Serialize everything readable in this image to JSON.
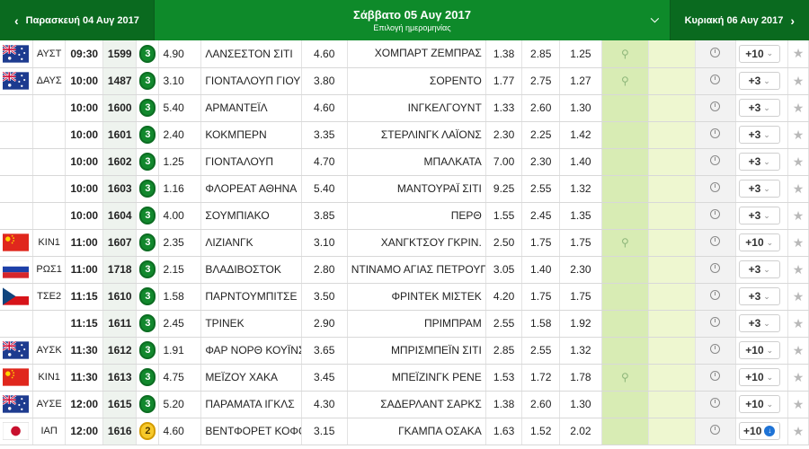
{
  "nav": {
    "prev_label": "Παρασκευή 04 Αυγ 2017",
    "prev_arrow": "‹",
    "current_label": "Σάββατο 05 Αυγ 2017",
    "current_sub": "Επιλογή ημερομηνίας",
    "current_chevron": "»",
    "next_label": "Κυριακή 06 Αυγ 2017",
    "next_arrow": "›"
  },
  "colors": {
    "header_green": "#0c7a24",
    "badge_green": "#12882d",
    "badge_yellow": "#f7c92b",
    "cell_light_green": "#d8ecb4",
    "cell_pale_green": "#eef7d0"
  },
  "rows": [
    {
      "flag": "au",
      "code": "ΑΥΣΤ",
      "time": "09:30",
      "num": "1599",
      "badge": "3",
      "badge_color": "green",
      "o1": "4.90",
      "home": "ΛΑΝΣΕΣΤΟΝ ΣΙΤΙ",
      "ox": "4.60",
      "away": "ΧΟΜΠΑΡΤ ΖΕΜΠΡΑΣ",
      "o2": "1.38",
      "ou_under": "2.85",
      "ou_over": "1.25",
      "live": true,
      "more": "+10",
      "more_icon": "chevron-down-icon"
    },
    {
      "flag": "au",
      "code": "ΔΑΥΣ",
      "time": "10:00",
      "num": "1487",
      "badge": "3",
      "badge_color": "green",
      "o1": "3.10",
      "home": "ΓΙΟΝΤΑΛΟΥΠ ΓΙΟΥΝ.",
      "ox": "3.80",
      "away": "ΣΟΡΕΝΤΟ",
      "o2": "1.77",
      "ou_under": "2.75",
      "ou_over": "1.27",
      "live": true,
      "more": "+3",
      "more_icon": "chevron-down-icon"
    },
    {
      "flag": "",
      "code": "",
      "time": "10:00",
      "num": "1600",
      "badge": "3",
      "badge_color": "green",
      "o1": "5.40",
      "home": "ΑΡΜΑΝΤΕΪΛ",
      "ox": "4.60",
      "away": "ΙΝΓΚΕΛΓΟΥΝΤ",
      "o2": "1.33",
      "ou_under": "2.60",
      "ou_over": "1.30",
      "live": false,
      "more": "+3",
      "more_icon": "chevron-down-icon"
    },
    {
      "flag": "",
      "code": "",
      "time": "10:00",
      "num": "1601",
      "badge": "3",
      "badge_color": "green",
      "o1": "2.40",
      "home": "ΚΟΚΜΠΕΡΝ",
      "ox": "3.35",
      "away": "ΣΤΕΡΛΙΝΓΚ ΛΑΪΟΝΣ",
      "o2": "2.30",
      "ou_under": "2.25",
      "ou_over": "1.42",
      "live": false,
      "more": "+3",
      "more_icon": "chevron-down-icon"
    },
    {
      "flag": "",
      "code": "",
      "time": "10:00",
      "num": "1602",
      "badge": "3",
      "badge_color": "green",
      "o1": "1.25",
      "home": "ΓΙΟΝΤΑΛΟΥΠ",
      "ox": "4.70",
      "away": "ΜΠΑΛΚΑΤΑ",
      "o2": "7.00",
      "ou_under": "2.30",
      "ou_over": "1.40",
      "live": false,
      "more": "+3",
      "more_icon": "chevron-down-icon"
    },
    {
      "flag": "",
      "code": "",
      "time": "10:00",
      "num": "1603",
      "badge": "3",
      "badge_color": "green",
      "o1": "1.16",
      "home": "ΦΛΟΡΕΑΤ ΑΘΗΝΑ",
      "ox": "5.40",
      "away": "ΜΑΝΤΟΥΡΑΪ ΣΙΤΙ",
      "o2": "9.25",
      "ou_under": "2.55",
      "ou_over": "1.32",
      "live": false,
      "more": "+3",
      "more_icon": "chevron-down-icon"
    },
    {
      "flag": "",
      "code": "",
      "time": "10:00",
      "num": "1604",
      "badge": "3",
      "badge_color": "green",
      "o1": "4.00",
      "home": "ΣΟΥΜΠΙΑΚΟ",
      "ox": "3.85",
      "away": "ΠΕΡΘ",
      "o2": "1.55",
      "ou_under": "2.45",
      "ou_over": "1.35",
      "live": false,
      "more": "+3",
      "more_icon": "chevron-down-icon"
    },
    {
      "flag": "cn",
      "code": "ΚΙΝ1",
      "time": "11:00",
      "num": "1607",
      "badge": "3",
      "badge_color": "green",
      "o1": "2.35",
      "home": "ΛΙΖΙΑΝΓΚ",
      "ox": "3.10",
      "away": "ΧΑΝΓΚΤΣΟΥ ΓΚΡΙΝ.",
      "o2": "2.50",
      "ou_under": "1.75",
      "ou_over": "1.75",
      "live": true,
      "more": "+10",
      "more_icon": "chevron-down-icon"
    },
    {
      "flag": "ru",
      "code": "ΡΩΣ1",
      "time": "11:00",
      "num": "1718",
      "badge": "3",
      "badge_color": "green",
      "o1": "2.15",
      "home": "ΒΛΑΔΙΒΟΣΤΟΚ",
      "ox": "2.80",
      "away": "ΝΤΙΝΑΜΟ ΑΓΙΑΣ ΠΕΤΡΟΥΠΟΛΗΣ",
      "o2": "3.05",
      "ou_under": "1.40",
      "ou_over": "2.30",
      "live": false,
      "more": "+3",
      "more_icon": "chevron-down-icon"
    },
    {
      "flag": "cz",
      "code": "ΤΣΕ2",
      "time": "11:15",
      "num": "1610",
      "badge": "3",
      "badge_color": "green",
      "o1": "1.58",
      "home": "ΠΑΡΝΤΟΥΜΠΙΤΣΕ",
      "ox": "3.50",
      "away": "ΦΡΙΝΤΕΚ ΜΙΣΤΕΚ",
      "o2": "4.20",
      "ou_under": "1.75",
      "ou_over": "1.75",
      "live": false,
      "more": "+3",
      "more_icon": "chevron-down-icon"
    },
    {
      "flag": "",
      "code": "",
      "time": "11:15",
      "num": "1611",
      "badge": "3",
      "badge_color": "green",
      "o1": "2.45",
      "home": "ΤΡΙΝΕΚ",
      "ox": "2.90",
      "away": "ΠΡΙΜΠΡΑΜ",
      "o2": "2.55",
      "ou_under": "1.58",
      "ou_over": "1.92",
      "live": false,
      "more": "+3",
      "more_icon": "chevron-down-icon"
    },
    {
      "flag": "au",
      "code": "ΑΥΣΚ",
      "time": "11:30",
      "num": "1612",
      "badge": "3",
      "badge_color": "green",
      "o1": "1.91",
      "home": "ΦΑΡ ΝΟΡΘ ΚΟΥΪΝΣΛΑΝΤ",
      "ox": "3.65",
      "away": "ΜΠΡΙΣΜΠΕΪΝ ΣΙΤΙ",
      "o2": "2.85",
      "ou_under": "2.55",
      "ou_over": "1.32",
      "live": false,
      "more": "+10",
      "more_icon": "chevron-down-icon"
    },
    {
      "flag": "cn",
      "code": "ΚΙΝ1",
      "time": "11:30",
      "num": "1613",
      "badge": "3",
      "badge_color": "green",
      "o1": "4.75",
      "home": "ΜΕΪΖΟΥ ΧΑΚΑ",
      "ox": "3.45",
      "away": "ΜΠΕΪΖΙΝΓΚ ΡΕΝΕ",
      "o2": "1.53",
      "ou_under": "1.72",
      "ou_over": "1.78",
      "live": true,
      "more": "+10",
      "more_icon": "chevron-down-icon"
    },
    {
      "flag": "au",
      "code": "ΑΥΣΕ",
      "time": "12:00",
      "num": "1615",
      "badge": "3",
      "badge_color": "green",
      "o1": "5.20",
      "home": "ΠΑΡΑΜΑΤΑ ΙΓΚΛΣ",
      "ox": "4.30",
      "away": "ΣΑΔΕΡΛΑΝΤ ΣΑΡΚΣ",
      "o2": "1.38",
      "ou_under": "2.60",
      "ou_over": "1.30",
      "live": false,
      "more": "+10",
      "more_icon": "chevron-down-icon"
    },
    {
      "flag": "jp",
      "code": "ΙΑΠ",
      "time": "12:00",
      "num": "1616",
      "badge": "2",
      "badge_color": "yellow",
      "o1": "4.60",
      "home": "ΒΕΝΤΦΟΡΕΤ ΚΟΦΟΥ",
      "ox": "3.15",
      "away": "ΓΚΑΜΠΑ ΟΣΑΚΑ",
      "o2": "1.63",
      "ou_under": "1.52",
      "ou_over": "2.02",
      "live": false,
      "more": "+10",
      "more_icon": "circle-arrow-down-icon"
    }
  ]
}
